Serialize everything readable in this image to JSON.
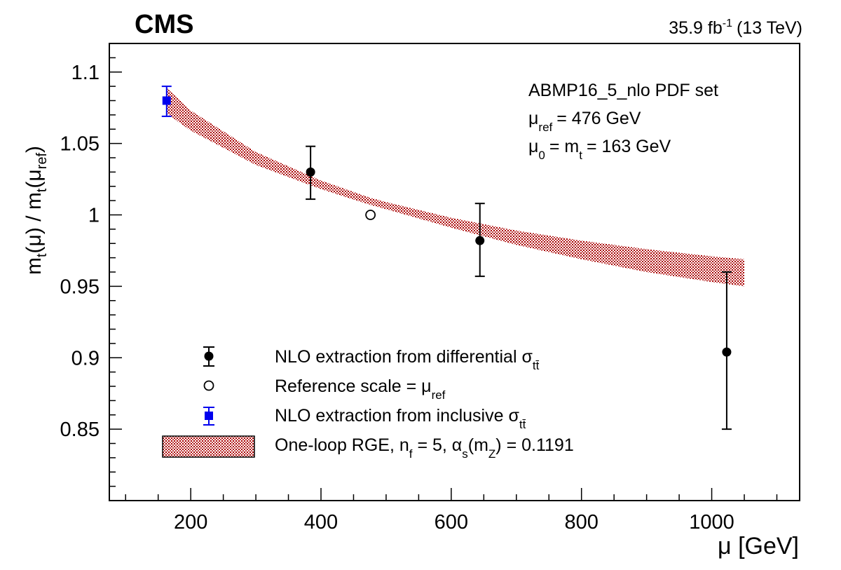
{
  "chart_data": {
    "type": "scatter",
    "experiment": "CMS",
    "lumi": "35.9 fb",
    "lumi_exp": "-1",
    "energy": "(13 TeV)",
    "xlabel": "μ [GeV]",
    "ylabel": {
      "m1": "m",
      "s1": "t",
      "p1": "(μ) / m",
      "s2": "t",
      "p2": "(μ",
      "s3": "ref",
      "p3": ")"
    },
    "xlim": [
      75,
      1135
    ],
    "ylim": [
      0.8,
      1.12
    ],
    "xticks": [
      {
        "value": 200,
        "label": "200"
      },
      {
        "value": 400,
        "label": "400"
      },
      {
        "value": 600,
        "label": "600"
      },
      {
        "value": 800,
        "label": "800"
      },
      {
        "value": 1000,
        "label": "1000"
      }
    ],
    "yticks": [
      {
        "value": 0.85,
        "label": "0.85"
      },
      {
        "value": 0.9,
        "label": "0.9"
      },
      {
        "value": 0.95,
        "label": "0.95"
      },
      {
        "value": 1.0,
        "label": "1"
      },
      {
        "value": 1.05,
        "label": "1.05"
      },
      {
        "value": 1.1,
        "label": "1.1"
      }
    ],
    "info": {
      "pdf": "ABMP16_5_nlo PDF set",
      "muref_sym": "μ",
      "muref_sub": "ref",
      "muref_val": "= 476 GeV",
      "mu0_sym": "μ",
      "mu0_sub": "0",
      "mu0_mid": "= m",
      "mu0_sub2": "t",
      "mu0_val": "= 163 GeV"
    },
    "series": [
      {
        "name": "NLO extraction from differential σtt̄",
        "marker": "filled-circle",
        "color": "#000000",
        "points": [
          {
            "x": 384,
            "y": 1.03,
            "yerr_low": 1.011,
            "yerr_high": 1.048
          },
          {
            "x": 644,
            "y": 0.982,
            "yerr_low": 0.957,
            "yerr_high": 1.008
          },
          {
            "x": 1023,
            "y": 0.904,
            "yerr_low": 0.85,
            "yerr_high": 0.96
          }
        ]
      },
      {
        "name": "Reference scale = μref",
        "marker": "open-circle",
        "color": "#000000",
        "points": [
          {
            "x": 476,
            "y": 1.0
          }
        ]
      },
      {
        "name": "NLO extraction from inclusive σtt̄",
        "marker": "filled-square",
        "color": "#0000ee",
        "points": [
          {
            "x": 163,
            "y": 1.08,
            "yerr_low": 1.069,
            "yerr_high": 1.09
          }
        ]
      }
    ],
    "band": {
      "name": "One-loop RGE, nf = 5, αs(mZ) = 0.1191",
      "color": "#a80000",
      "x": [
        163,
        200,
        300,
        400,
        476,
        500,
        600,
        700,
        800,
        900,
        1000,
        1050
      ],
      "upper": [
        1.089,
        1.073,
        1.044,
        1.024,
        1.012,
        1.009,
        0.998,
        0.989,
        0.982,
        0.976,
        0.971,
        0.969
      ],
      "lower": [
        1.071,
        1.059,
        1.035,
        1.018,
        1.007,
        1.004,
        0.991,
        0.979,
        0.969,
        0.96,
        0.953,
        0.95
      ]
    },
    "legend": {
      "position": "bottom-left",
      "diff": {
        "text": "NLO extraction from differential σ",
        "sub": "tt̄"
      },
      "ref": {
        "text": "Reference scale = μ",
        "sub": "ref"
      },
      "incl": {
        "text": "NLO extraction from inclusive σ",
        "sub": "tt̄"
      },
      "rge": {
        "t1": "One-loop RGE, n",
        "s1": "f",
        "t2": " = 5, α",
        "s2": "s",
        "t3": "(m",
        "s3": "Z",
        "t4": ") = 0.1191"
      }
    }
  }
}
